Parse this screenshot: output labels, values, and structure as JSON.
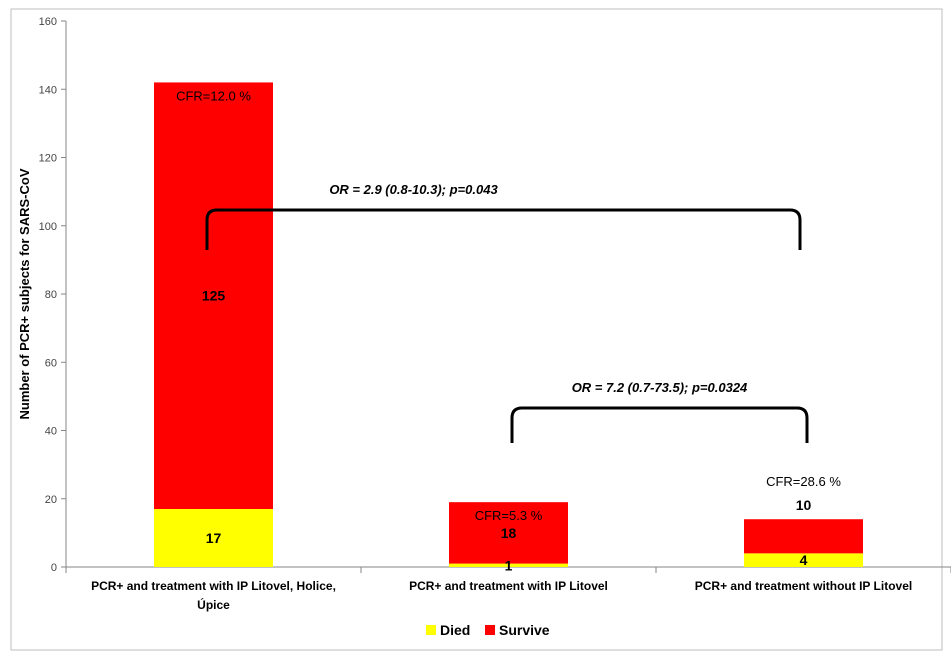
{
  "chart_data": {
    "type": "bar",
    "stacked": true,
    "title": "",
    "xlabel": "",
    "ylabel": "Number of PCR+ subjects for SARS-CoV",
    "ylim": [
      0,
      160
    ],
    "yticks": [
      0,
      20,
      40,
      60,
      80,
      100,
      120,
      140,
      160
    ],
    "grid": false,
    "legend_position": "bottom",
    "categories": [
      [
        "PCR+ and treatment with IP Litovel, Holice,",
        "Úpice"
      ],
      [
        "PCR+ and treatment with IP Litovel"
      ],
      [
        "PCR+ and treatment without IP Litovel"
      ]
    ],
    "series": [
      {
        "name": "Died",
        "color": "#ffff00",
        "values": [
          17,
          1,
          4
        ],
        "labels": [
          "17",
          "1",
          "4"
        ]
      },
      {
        "name": "Survive",
        "color": "#ff0000",
        "values": [
          125,
          18,
          10
        ],
        "labels": [
          "125",
          "18",
          "10"
        ]
      }
    ],
    "annotations": {
      "cfr": [
        "CFR=12.0 %",
        "CFR=5.3 %",
        "CFR=28.6 %"
      ],
      "comparisons": [
        {
          "text": "OR = 2.9 (0.8-10.3); p=0.043",
          "from": 0,
          "to": 2
        },
        {
          "text": "OR = 7.2 (0.7-73.5); p=0.0324",
          "from": 1,
          "to": 2
        }
      ]
    }
  }
}
